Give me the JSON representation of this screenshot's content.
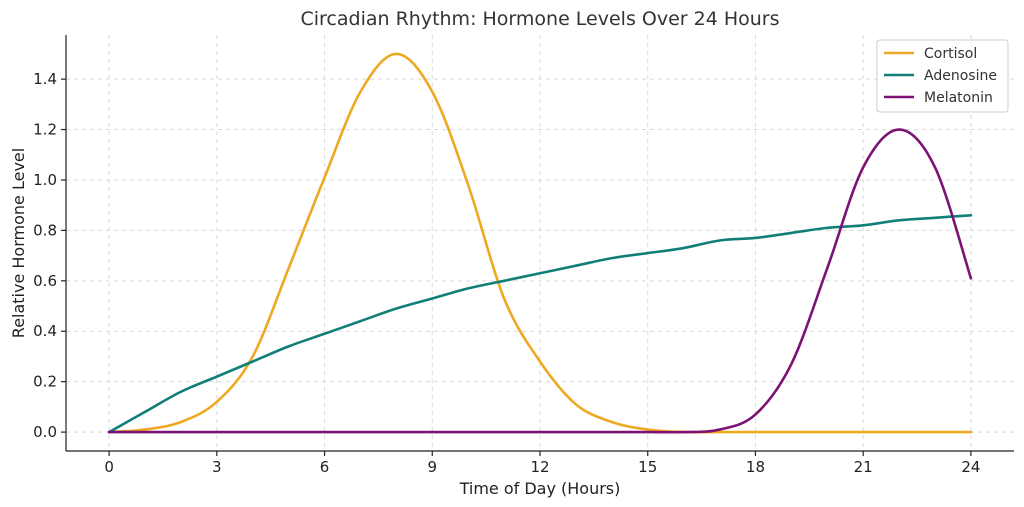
{
  "chart_data": {
    "type": "line",
    "title": "Circadian Rhythm: Hormone Levels Over 24 Hours",
    "xlabel": "Time of Day (Hours)",
    "ylabel": "Relative Hormone Level",
    "xlim": [
      -1.2,
      25.2
    ],
    "ylim": [
      -0.075,
      1.575
    ],
    "x_ticks": [
      0,
      3,
      6,
      9,
      12,
      15,
      18,
      21,
      24
    ],
    "x_tick_labels": [
      "0",
      "3",
      "6",
      "9",
      "12",
      "15",
      "18",
      "21",
      "24"
    ],
    "y_ticks": [
      0.0,
      0.2,
      0.4,
      0.6,
      0.8,
      1.0,
      1.2,
      1.4
    ],
    "y_tick_labels": [
      "0.0",
      "0.2",
      "0.4",
      "0.6",
      "0.8",
      "1.0",
      "1.2",
      "1.4"
    ],
    "grid": true,
    "legend_position": "top-right",
    "x": [
      0,
      1,
      2,
      3,
      4,
      5,
      6,
      7,
      8,
      9,
      10,
      11,
      12,
      13,
      14,
      15,
      16,
      17,
      18,
      19,
      20,
      21,
      22,
      23,
      24
    ],
    "series": [
      {
        "name": "Cortisol",
        "color": "#EDA922",
        "values": [
          0.0,
          0.01,
          0.04,
          0.12,
          0.3,
          0.65,
          1.01,
          1.35,
          1.5,
          1.35,
          0.98,
          0.53,
          0.28,
          0.11,
          0.04,
          0.01,
          0.0,
          0.0,
          0.0,
          0.0,
          0.0,
          0.0,
          0.0,
          0.0,
          0.0
        ]
      },
      {
        "name": "Adenosine",
        "color": "#117F78",
        "values": [
          0.0,
          0.08,
          0.16,
          0.22,
          0.28,
          0.34,
          0.39,
          0.44,
          0.49,
          0.53,
          0.57,
          0.6,
          0.63,
          0.66,
          0.69,
          0.71,
          0.73,
          0.76,
          0.77,
          0.79,
          0.81,
          0.82,
          0.84,
          0.85,
          0.86
        ]
      },
      {
        "name": "Melatonin",
        "color": "#7B1274",
        "values": [
          0.0,
          0.0,
          0.0,
          0.0,
          0.0,
          0.0,
          0.0,
          0.0,
          0.0,
          0.0,
          0.0,
          0.0,
          0.0,
          0.0,
          0.0,
          0.0,
          0.0,
          0.01,
          0.07,
          0.27,
          0.65,
          1.05,
          1.2,
          1.05,
          0.61
        ]
      }
    ]
  }
}
